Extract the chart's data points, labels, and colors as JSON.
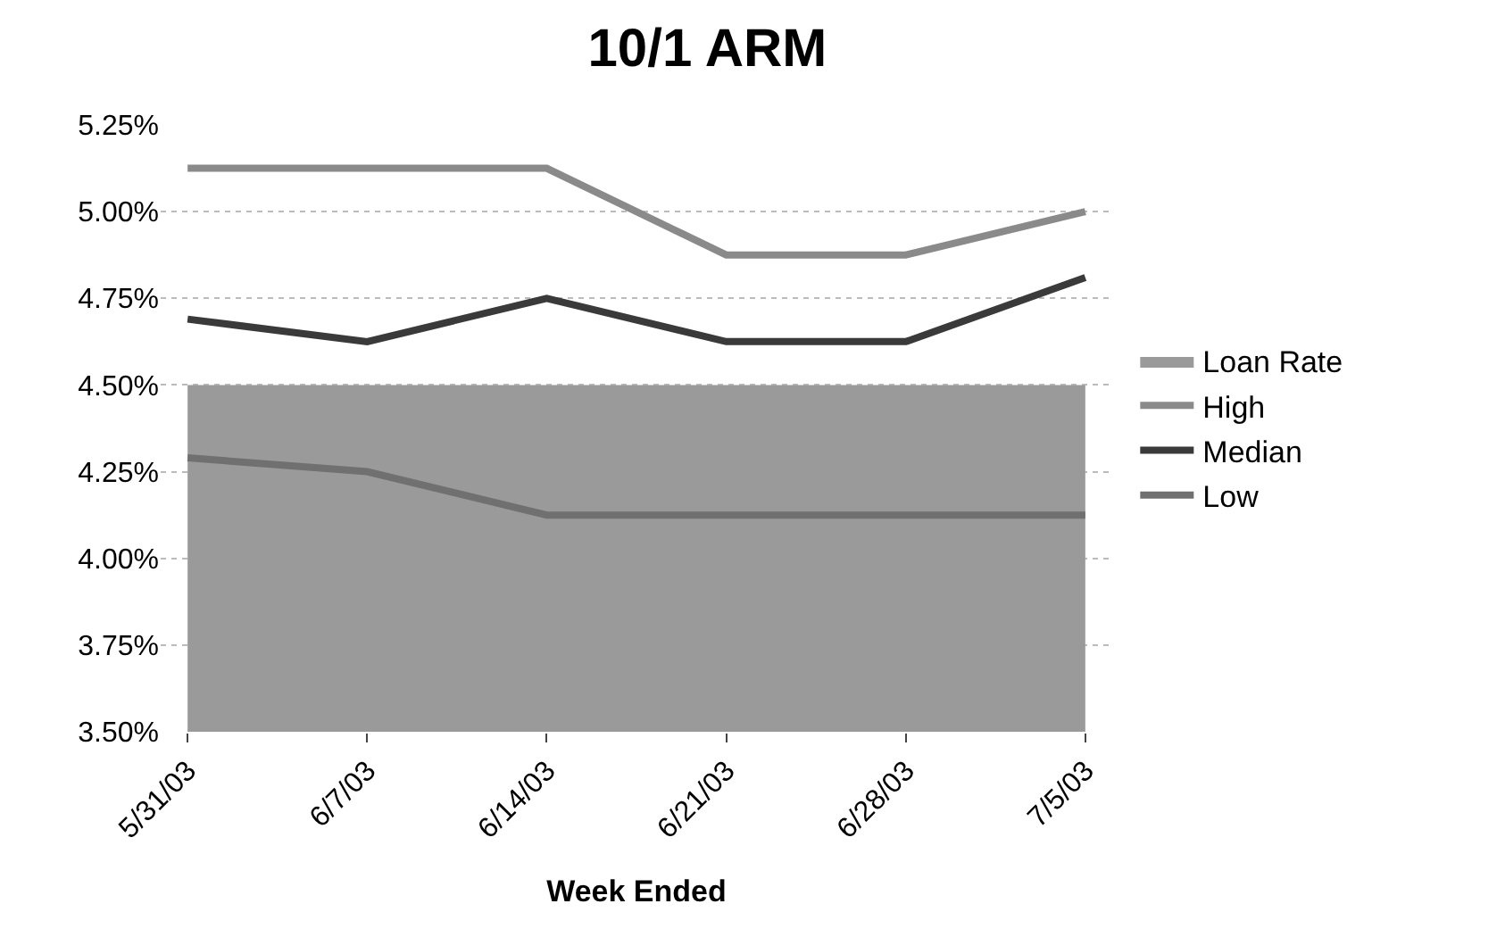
{
  "chart_data": {
    "type": "line",
    "title": "10/1 ARM",
    "xlabel": "Week Ended",
    "categories": [
      "5/31/03",
      "6/7/03",
      "6/14/03",
      "6/21/03",
      "6/28/03",
      "7/5/03"
    ],
    "series": [
      {
        "name": "Loan Rate",
        "type": "area",
        "color": "#9a9a9a",
        "values": [
          4.5,
          4.5,
          4.5,
          4.5,
          4.5,
          4.5
        ]
      },
      {
        "name": "High",
        "color": "#8a8a8a",
        "values": [
          5.125,
          5.125,
          5.125,
          4.875,
          4.875,
          5.0
        ]
      },
      {
        "name": "Median",
        "color": "#3a3a3a",
        "values": [
          4.69,
          4.625,
          4.75,
          4.625,
          4.625,
          4.81
        ]
      },
      {
        "name": "Low",
        "color": "#707070",
        "values": [
          4.29,
          4.25,
          4.125,
          4.125,
          4.125,
          4.125
        ]
      }
    ],
    "ylim": [
      3.5,
      5.25
    ],
    "yticks": [
      {
        "value": 3.5,
        "label": "3.50%"
      },
      {
        "value": 3.75,
        "label": "3.75%"
      },
      {
        "value": 4.0,
        "label": "4.00%"
      },
      {
        "value": 4.25,
        "label": "4.25%"
      },
      {
        "value": 4.5,
        "label": "4.50%"
      },
      {
        "value": 4.75,
        "label": "4.75%"
      },
      {
        "value": 5.0,
        "label": "5.00%"
      },
      {
        "value": 5.25,
        "label": "5.25%"
      }
    ],
    "grid": "y",
    "legend": "right",
    "marker": "none",
    "line_style": "solid"
  }
}
